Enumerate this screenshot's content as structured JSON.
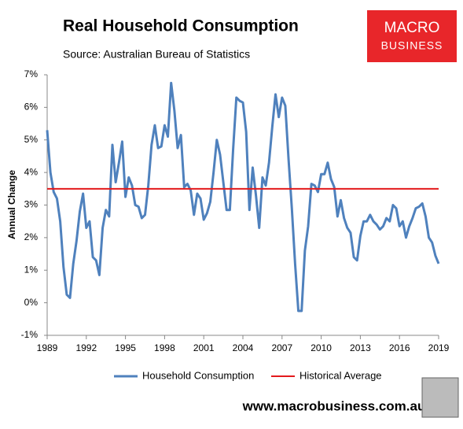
{
  "logo": {
    "line1": "MACRO",
    "line2": "BUSINESS"
  },
  "footer": "www.macrobusiness.com.au",
  "chart_data": {
    "type": "line",
    "title": "Real Household Consumption",
    "subtitle": "Source: Australian Bureau of Statistics",
    "y_label": "Annual Change",
    "x": [
      1989,
      1989.25,
      1989.5,
      1989.75,
      1990,
      1990.25,
      1990.5,
      1990.75,
      1991,
      1991.25,
      1991.5,
      1991.75,
      1992,
      1992.25,
      1992.5,
      1992.75,
      1993,
      1993.25,
      1993.5,
      1993.75,
      1994,
      1994.25,
      1994.5,
      1994.75,
      1995,
      1995.25,
      1995.5,
      1995.75,
      1996,
      1996.25,
      1996.5,
      1996.75,
      1997,
      1997.25,
      1997.5,
      1997.75,
      1998,
      1998.25,
      1998.5,
      1998.75,
      1999,
      1999.25,
      1999.5,
      1999.75,
      2000,
      2000.25,
      2000.5,
      2000.75,
      2001,
      2001.25,
      2001.5,
      2001.75,
      2002,
      2002.25,
      2002.5,
      2002.75,
      2003,
      2003.25,
      2003.5,
      2003.75,
      2004,
      2004.25,
      2004.5,
      2004.75,
      2005,
      2005.25,
      2005.5,
      2005.75,
      2006,
      2006.25,
      2006.5,
      2006.75,
      2007,
      2007.25,
      2007.5,
      2007.75,
      2008,
      2008.25,
      2008.5,
      2008.75,
      2009,
      2009.25,
      2009.5,
      2009.75,
      2010,
      2010.25,
      2010.5,
      2010.75,
      2011,
      2011.25,
      2011.5,
      2011.75,
      2012,
      2012.25,
      2012.5,
      2012.75,
      2013,
      2013.25,
      2013.5,
      2013.75,
      2014,
      2014.25,
      2014.5,
      2014.75,
      2015,
      2015.25,
      2015.5,
      2015.75,
      2016,
      2016.25,
      2016.5,
      2016.75,
      2017,
      2017.25,
      2017.5,
      2017.75,
      2018,
      2018.25,
      2018.5,
      2018.75,
      2019
    ],
    "series": [
      {
        "name": "Household Consumption",
        "color": "#4f81bd",
        "values": [
          5.3,
          4.0,
          3.4,
          3.2,
          2.5,
          1.1,
          0.25,
          0.15,
          1.2,
          1.9,
          2.8,
          3.35,
          2.3,
          2.5,
          1.4,
          1.3,
          0.85,
          2.3,
          2.85,
          2.65,
          4.85,
          3.7,
          4.3,
          4.95,
          3.25,
          3.85,
          3.6,
          3.0,
          2.95,
          2.6,
          2.7,
          3.6,
          4.85,
          5.45,
          4.75,
          4.8,
          5.45,
          5.1,
          6.75,
          5.9,
          4.75,
          5.15,
          3.55,
          3.65,
          3.45,
          2.7,
          3.35,
          3.2,
          2.55,
          2.75,
          3.1,
          4.0,
          5.0,
          4.55,
          3.7,
          2.85,
          2.85,
          4.7,
          6.3,
          6.2,
          6.15,
          5.25,
          2.85,
          4.15,
          3.3,
          2.3,
          3.85,
          3.6,
          4.3,
          5.4,
          6.4,
          5.7,
          6.3,
          6.05,
          4.4,
          2.9,
          1.2,
          -0.25,
          -0.25,
          1.6,
          2.35,
          3.65,
          3.6,
          3.4,
          3.95,
          3.95,
          4.3,
          3.8,
          3.55,
          2.65,
          3.15,
          2.6,
          2.3,
          2.15,
          1.4,
          1.3,
          2.05,
          2.5,
          2.5,
          2.7,
          2.5,
          2.4,
          2.25,
          2.35,
          2.6,
          2.5,
          3.0,
          2.9,
          2.35,
          2.5,
          2.0,
          2.35,
          2.6,
          2.9,
          2.95,
          3.05,
          2.65,
          2.0,
          1.85,
          1.45,
          1.2
        ]
      }
    ],
    "reference_lines": [
      {
        "name": "Historical Average",
        "value": 3.5,
        "color": "#e31a1c"
      }
    ],
    "xlim": [
      1989,
      2019
    ],
    "xticks": [
      1989,
      1992,
      1995,
      1998,
      2001,
      2004,
      2007,
      2010,
      2013,
      2016,
      2019
    ],
    "ylim": [
      -1,
      7
    ],
    "yticks": [
      {
        "value": -1,
        "label": "-1%"
      },
      {
        "value": 0,
        "label": "0%"
      },
      {
        "value": 1,
        "label": "1%"
      },
      {
        "value": 2,
        "label": "2%"
      },
      {
        "value": 3,
        "label": "3%"
      },
      {
        "value": 4,
        "label": "4%"
      },
      {
        "value": 5,
        "label": "5%"
      },
      {
        "value": 6,
        "label": "6%"
      },
      {
        "value": 7,
        "label": "7%"
      }
    ],
    "grid": false,
    "legend": "bottom"
  }
}
